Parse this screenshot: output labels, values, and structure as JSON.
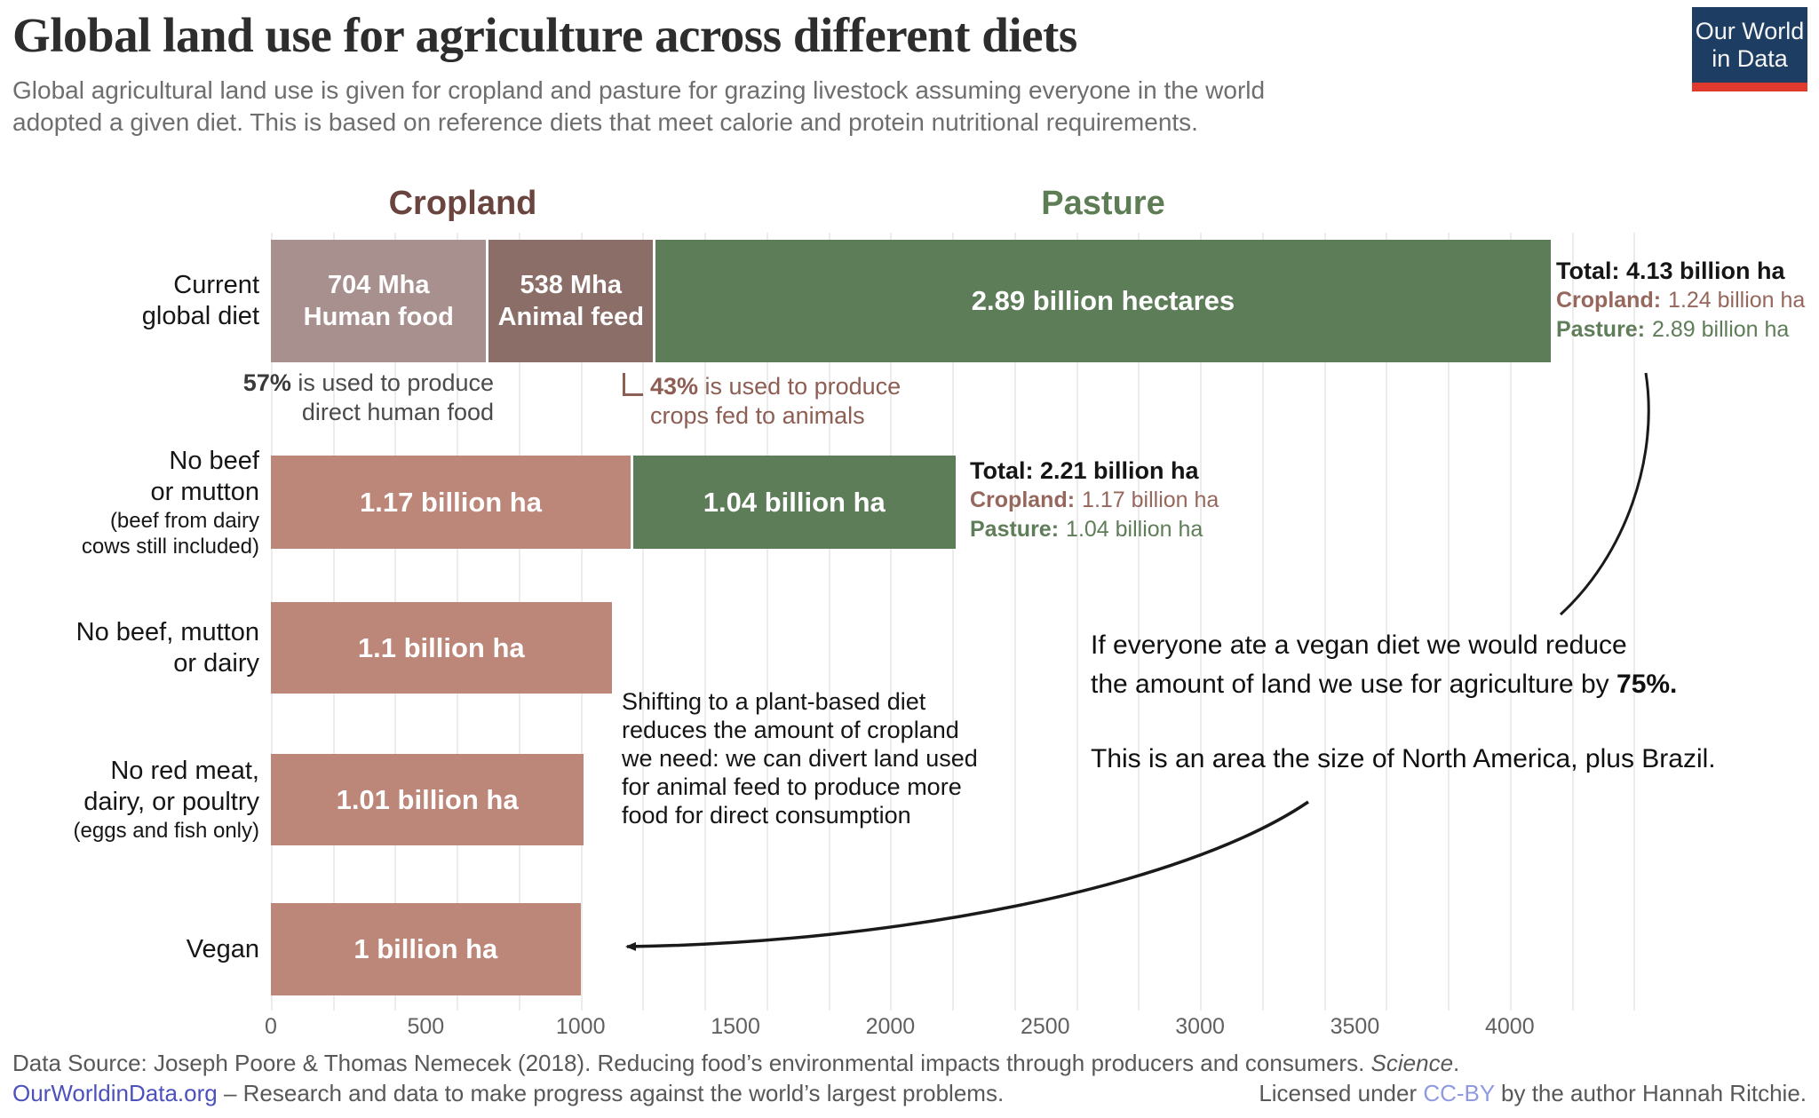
{
  "header": {
    "title": "Global land use for agriculture across different diets",
    "subtitle": "Global agricultural land use is given for cropland and pasture for grazing livestock assuming everyone in the world\nadopted a given diet. This is based on reference diets that meet calorie and protein nutritional requirements.",
    "logo": {
      "line1": "Our World",
      "line2": "in Data",
      "bg_color": "#1d3d63",
      "accent_color": "#e0392e"
    }
  },
  "chart_data": {
    "type": "bar",
    "orientation": "horizontal",
    "title": "Global land use for agriculture across different diets",
    "x_unit": "Mha",
    "xlabel": "",
    "xlim": [
      0,
      4400
    ],
    "x_ticks": [
      0,
      500,
      1000,
      1500,
      2000,
      2500,
      3000,
      3500,
      4000
    ],
    "gridline_step": 200,
    "grid": true,
    "column_headers": {
      "cropland": {
        "label": "Cropland",
        "color": "#6a443e"
      },
      "pasture": {
        "label": "Pasture",
        "color": "#5d7d55"
      }
    },
    "colors": {
      "cropland_human_food": "#a8908e",
      "cropland_animal_feed": "#8c6e69",
      "pasture": "#5d7c58",
      "cropland_plain": "#bc8679"
    },
    "rows": [
      {
        "id": "current-global-diet",
        "label_lines": "Current\nglobal diet",
        "note_lines": "",
        "segments": [
          {
            "series": "cropland-human-food",
            "value_mha": 704,
            "label": "704 Mha",
            "sublabel": "Human food",
            "color": "#a8908e"
          },
          {
            "series": "cropland-animal-feed",
            "value_mha": 538,
            "label": "538 Mha",
            "sublabel": "Animal feed",
            "color": "#8c6e69"
          },
          {
            "series": "pasture",
            "value_mha": 2890,
            "label": "2.89 billion hectares",
            "sublabel": "",
            "color": "#5d7c58"
          }
        ],
        "totals": {
          "total": "Total: 4.13 billion ha",
          "cropland_label": "Cropland:",
          "cropland_value": "1.24 billion ha",
          "pasture_label": "Pasture:",
          "pasture_value": "2.89 billion ha"
        }
      },
      {
        "id": "no-beef-or-mutton",
        "label_lines": "No beef\nor mutton",
        "note_lines": "(beef from dairy\ncows still included)",
        "segments": [
          {
            "series": "cropland",
            "value_mha": 1170,
            "label": "1.17 billion ha",
            "sublabel": "",
            "color": "#bc8679"
          },
          {
            "series": "pasture",
            "value_mha": 1040,
            "label": "1.04 billion ha",
            "sublabel": "",
            "color": "#5d7c58"
          }
        ],
        "totals": {
          "total": "Total: 2.21 billion ha",
          "cropland_label": "Cropland:",
          "cropland_value": "1.17 billion ha",
          "pasture_label": "Pasture:",
          "pasture_value": "1.04 billion ha"
        }
      },
      {
        "id": "no-beef-mutton-or-dairy",
        "label_lines": "No beef, mutton\nor dairy",
        "note_lines": "",
        "segments": [
          {
            "series": "cropland",
            "value_mha": 1100,
            "label": "1.1 billion ha",
            "sublabel": "",
            "color": "#bc8679"
          }
        ],
        "totals": null
      },
      {
        "id": "no-red-meat-dairy-or-poultry",
        "label_lines": "No red meat,\ndairy, or poultry",
        "note_lines": "(eggs and fish only)",
        "segments": [
          {
            "series": "cropland",
            "value_mha": 1010,
            "label": "1.01 billion ha",
            "sublabel": "",
            "color": "#bc8679"
          }
        ],
        "totals": null
      },
      {
        "id": "vegan",
        "label_lines": "Vegan",
        "note_lines": "",
        "segments": [
          {
            "series": "cropland",
            "value_mha": 1000,
            "label": "1 billion ha",
            "sublabel": "",
            "color": "#bc8679"
          }
        ],
        "totals": null
      }
    ],
    "annotations": {
      "pct57_bold": "57%",
      "pct57_rest": " is used to produce",
      "pct57_line2": "direct human food",
      "pct43_bold": "43%",
      "pct43_rest": " is used to produce",
      "pct43_line2": "crops fed to animals",
      "cropland_note": "Shifting to a plant-based diet\nreduces the amount of cropland\nwe need: we can divert land used\nfor animal feed to produce more\nfood for direct consumption",
      "vegan_line1": "If everyone ate a vegan diet we would reduce",
      "vegan_line2_pre": "the amount of land we use for agriculture by ",
      "vegan_line2_bold": "75%.",
      "vegan_line3": "This is an area the size of North America, plus Brazil."
    }
  },
  "footer": {
    "datasource_pre": "Data Source: Joseph Poore & Thomas Nemecek (2018). Reducing food’s environmental impacts through producers and consumers. ",
    "datasource_italic": "Science",
    "datasource_post": ".",
    "site_link": "OurWorldinData.org",
    "tagline": " – Research and data to make progress against the world’s largest problems.",
    "license_pre": "Licensed under ",
    "license_link": "CC-BY",
    "license_post": " by the author Hannah Ritchie."
  }
}
